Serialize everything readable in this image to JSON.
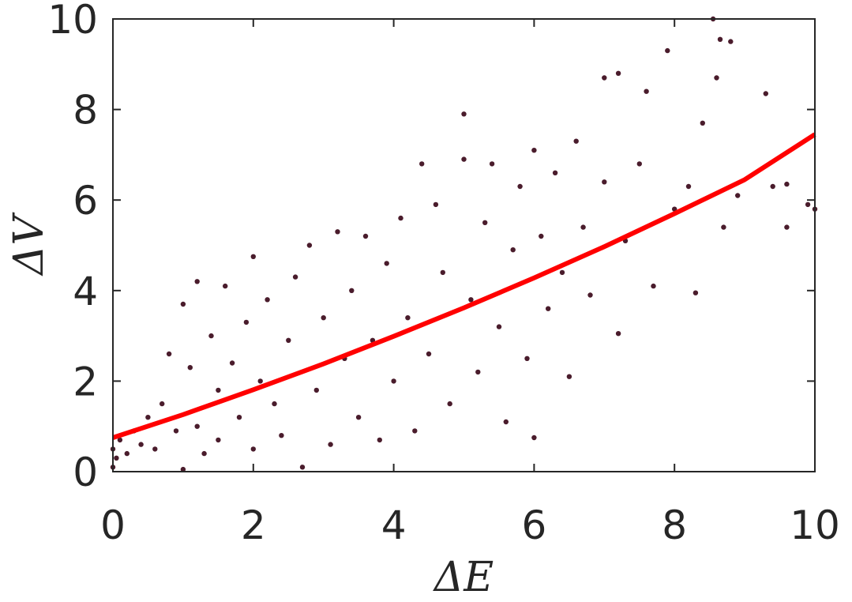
{
  "chart_data": {
    "type": "scatter",
    "xlabel": "ΔE",
    "ylabel": "ΔV",
    "xlim": [
      0,
      10
    ],
    "ylim": [
      0,
      10
    ],
    "xticks": [
      0,
      2,
      4,
      6,
      8,
      10
    ],
    "yticks": [
      0,
      2,
      4,
      6,
      8,
      10
    ],
    "grid": false,
    "legend": "none",
    "colors": {
      "points": "#4a1c2c",
      "fit": "#ff0000",
      "axes": "#262626"
    },
    "series": [
      {
        "kind": "points",
        "points": [
          [
            0.0,
            0.1
          ],
          [
            0.0,
            0.5
          ],
          [
            0.05,
            0.3
          ],
          [
            0.1,
            0.7
          ],
          [
            0.2,
            0.4
          ],
          [
            0.3,
            0.9
          ],
          [
            0.4,
            0.6
          ],
          [
            0.5,
            1.2
          ],
          [
            0.6,
            0.5
          ],
          [
            0.7,
            1.5
          ],
          [
            0.8,
            2.6
          ],
          [
            0.9,
            0.9
          ],
          [
            1.0,
            0.05
          ],
          [
            1.0,
            3.7
          ],
          [
            1.1,
            2.3
          ],
          [
            1.2,
            4.2
          ],
          [
            1.2,
            1.0
          ],
          [
            1.3,
            0.4
          ],
          [
            1.4,
            3.0
          ],
          [
            1.5,
            1.8
          ],
          [
            1.5,
            0.7
          ],
          [
            1.6,
            4.1
          ],
          [
            1.7,
            2.4
          ],
          [
            1.8,
            1.2
          ],
          [
            1.9,
            3.3
          ],
          [
            2.0,
            4.75
          ],
          [
            2.0,
            0.5
          ],
          [
            2.1,
            2.0
          ],
          [
            2.2,
            3.8
          ],
          [
            2.3,
            1.5
          ],
          [
            2.4,
            0.8
          ],
          [
            2.5,
            2.9
          ],
          [
            2.6,
            4.3
          ],
          [
            2.7,
            0.1
          ],
          [
            2.8,
            5.0
          ],
          [
            2.9,
            1.8
          ],
          [
            3.0,
            3.4
          ],
          [
            3.1,
            0.6
          ],
          [
            3.2,
            5.3
          ],
          [
            3.3,
            2.5
          ],
          [
            3.4,
            4.0
          ],
          [
            3.5,
            1.2
          ],
          [
            3.6,
            5.2
          ],
          [
            3.7,
            2.9
          ],
          [
            3.8,
            0.7
          ],
          [
            3.9,
            4.6
          ],
          [
            4.0,
            2.0
          ],
          [
            4.1,
            5.6
          ],
          [
            4.2,
            3.4
          ],
          [
            4.3,
            0.9
          ],
          [
            4.4,
            6.8
          ],
          [
            4.5,
            2.6
          ],
          [
            4.6,
            5.9
          ],
          [
            4.7,
            4.4
          ],
          [
            4.8,
            1.5
          ],
          [
            5.0,
            6.9
          ],
          [
            5.0,
            7.9
          ],
          [
            5.1,
            3.8
          ],
          [
            5.2,
            2.2
          ],
          [
            5.3,
            5.5
          ],
          [
            5.4,
            6.8
          ],
          [
            5.5,
            3.2
          ],
          [
            5.6,
            1.1
          ],
          [
            5.7,
            4.9
          ],
          [
            5.8,
            6.3
          ],
          [
            5.9,
            2.5
          ],
          [
            6.0,
            7.1
          ],
          [
            6.0,
            0.75
          ],
          [
            6.1,
            5.2
          ],
          [
            6.2,
            3.6
          ],
          [
            6.3,
            6.6
          ],
          [
            6.4,
            4.4
          ],
          [
            6.5,
            2.1
          ],
          [
            6.6,
            7.3
          ],
          [
            6.7,
            5.4
          ],
          [
            6.8,
            3.9
          ],
          [
            7.0,
            6.4
          ],
          [
            7.0,
            8.7
          ],
          [
            7.2,
            8.8
          ],
          [
            7.2,
            3.05
          ],
          [
            7.3,
            5.1
          ],
          [
            7.5,
            6.8
          ],
          [
            7.6,
            8.4
          ],
          [
            7.7,
            4.1
          ],
          [
            7.9,
            9.3
          ],
          [
            8.0,
            5.8
          ],
          [
            8.2,
            6.3
          ],
          [
            8.3,
            3.95
          ],
          [
            8.4,
            7.7
          ],
          [
            8.55,
            10.0
          ],
          [
            8.6,
            8.7
          ],
          [
            8.65,
            9.55
          ],
          [
            8.8,
            9.5
          ],
          [
            8.7,
            5.4
          ],
          [
            8.9,
            6.1
          ],
          [
            9.3,
            8.35
          ],
          [
            9.4,
            6.3
          ],
          [
            9.6,
            5.4
          ],
          [
            9.6,
            6.35
          ],
          [
            9.9,
            5.9
          ],
          [
            10.0,
            5.8
          ]
        ]
      },
      {
        "kind": "fit",
        "x": [
          0,
          1,
          2,
          3,
          4,
          5,
          6,
          7,
          8,
          9,
          10
        ],
        "y": [
          0.75,
          1.26,
          1.81,
          2.38,
          2.99,
          3.62,
          4.28,
          4.97,
          5.7,
          6.45,
          7.45
        ]
      }
    ]
  }
}
